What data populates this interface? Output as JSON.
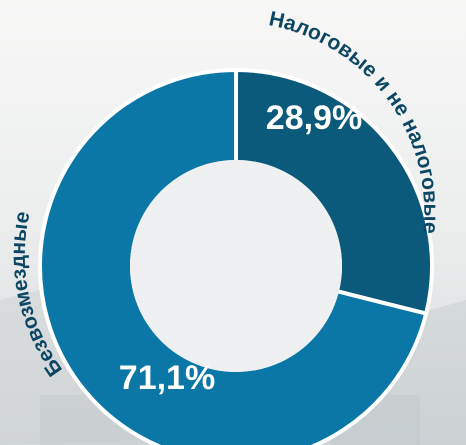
{
  "chart_data": {
    "type": "pie",
    "title": "",
    "categories": [
      "Налоговые и не налоговые",
      "Безвозмездные"
    ],
    "values": [
      28.9,
      71.1
    ],
    "data_labels": [
      "28,9%",
      "71,1%"
    ],
    "colors": [
      "#0b5a7c",
      "#0a77a6"
    ],
    "donut": true,
    "legend": "none"
  }
}
